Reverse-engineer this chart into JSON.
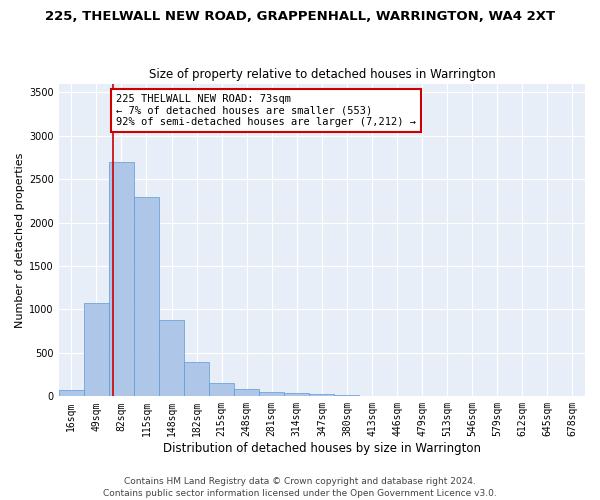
{
  "title1": "225, THELWALL NEW ROAD, GRAPPENHALL, WARRINGTON, WA4 2XT",
  "title2": "Size of property relative to detached houses in Warrington",
  "xlabel": "Distribution of detached houses by size in Warrington",
  "ylabel": "Number of detached properties",
  "footer1": "Contains HM Land Registry data © Crown copyright and database right 2024.",
  "footer2": "Contains public sector information licensed under the Open Government Licence v3.0.",
  "annotation_line1": "225 THELWALL NEW ROAD: 73sqm",
  "annotation_line2": "← 7% of detached houses are smaller (553)",
  "annotation_line3": "92% of semi-detached houses are larger (7,212) →",
  "bar_color": "#aec6e8",
  "bar_edge_color": "#5b9bd5",
  "vline_color": "#cc0000",
  "annotation_box_color": "#cc0000",
  "background_color": "#e8eef7",
  "categories": [
    "16sqm",
    "49sqm",
    "82sqm",
    "115sqm",
    "148sqm",
    "182sqm",
    "215sqm",
    "248sqm",
    "281sqm",
    "314sqm",
    "347sqm",
    "380sqm",
    "413sqm",
    "446sqm",
    "479sqm",
    "513sqm",
    "546sqm",
    "579sqm",
    "612sqm",
    "645sqm",
    "678sqm"
  ],
  "values": [
    75,
    1080,
    2700,
    2300,
    880,
    390,
    155,
    90,
    55,
    38,
    22,
    12,
    7,
    4,
    2,
    1,
    1,
    0,
    0,
    0,
    0
  ],
  "ylim": [
    0,
    3600
  ],
  "yticks": [
    0,
    500,
    1000,
    1500,
    2000,
    2500,
    3000,
    3500
  ],
  "vline_x": 1.67,
  "title1_fontsize": 9.5,
  "title2_fontsize": 8.5,
  "ylabel_fontsize": 8,
  "xlabel_fontsize": 8.5,
  "tick_fontsize": 7,
  "annotation_fontsize": 7.5,
  "footer_fontsize": 6.5
}
